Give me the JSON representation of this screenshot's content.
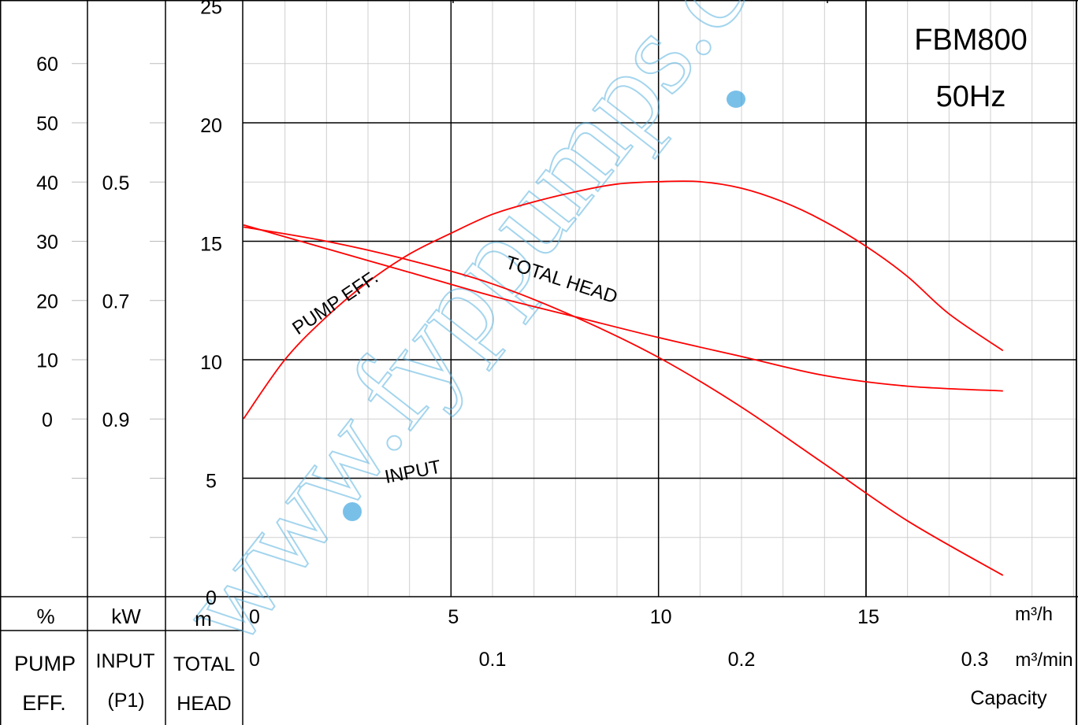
{
  "chart_data": {
    "type": "line",
    "model": "FBM800",
    "frequency": "50Hz",
    "watermark": "www.fyppumps.com",
    "x_axis": {
      "unit_main": "m³/h",
      "unit_alt": "m³/min",
      "caption": "Capacity",
      "range_m3h": [
        0,
        20
      ],
      "ticks_m3h": [
        {
          "value": 0,
          "label": "0"
        },
        {
          "value": 5,
          "label": "5"
        },
        {
          "value": 10,
          "label": "10"
        },
        {
          "value": 15,
          "label": "15"
        }
      ],
      "ticks_m3min": [
        {
          "value": 0,
          "label": "0"
        },
        {
          "value": 0.1,
          "label": "0.1"
        },
        {
          "value": 0.2,
          "label": "0.2"
        },
        {
          "value": 0.3,
          "label": "0.3"
        }
      ]
    },
    "y_axes": {
      "head": {
        "unit": "m",
        "caption": [
          "TOTAL",
          "HEAD"
        ],
        "range": [
          0,
          25
        ],
        "ticks": [
          "0",
          "5",
          "10",
          "15",
          "20",
          "25"
        ]
      },
      "input": {
        "unit": "kW",
        "caption": [
          "INPUT",
          "(P1)"
        ],
        "ticks": [
          {
            "value": 0.9,
            "label": "0.9"
          },
          {
            "value": 0.7,
            "label": "0.7"
          },
          {
            "value": 0.5,
            "label": "0.5"
          }
        ]
      },
      "efficiency": {
        "unit": "%",
        "caption": [
          "PUMP",
          "EFF."
        ],
        "ticks": [
          {
            "value": 0,
            "label": "0"
          },
          {
            "value": 10,
            "label": "10"
          },
          {
            "value": 20,
            "label": "20"
          },
          {
            "value": 30,
            "label": "30"
          },
          {
            "value": 40,
            "label": "40"
          },
          {
            "value": 50,
            "label": "50"
          },
          {
            "value": 60,
            "label": "60"
          }
        ]
      }
    },
    "series": [
      {
        "name": "TOTAL HEAD",
        "axis": "head",
        "color": "#ff0000",
        "points": [
          [
            0,
            15.6
          ],
          [
            2,
            15.0
          ],
          [
            4,
            14.2
          ],
          [
            6,
            13.2
          ],
          [
            8,
            11.8
          ],
          [
            10,
            10.1
          ],
          [
            12,
            8.0
          ],
          [
            14,
            5.6
          ],
          [
            16,
            3.2
          ],
          [
            18.3,
            0.9
          ]
        ]
      },
      {
        "name": "PUMP EFF.",
        "axis": "efficiency",
        "color": "#ff0000",
        "points": [
          [
            0,
            0
          ],
          [
            1,
            10
          ],
          [
            2,
            17.2
          ],
          [
            3,
            23.1
          ],
          [
            4,
            27.8
          ],
          [
            5,
            31.3
          ],
          [
            6,
            34.5
          ],
          [
            7,
            36.6
          ],
          [
            8,
            38.3
          ],
          [
            9,
            39.6
          ],
          [
            10,
            40.0
          ],
          [
            11,
            40.0
          ],
          [
            12,
            38.9
          ],
          [
            13,
            36.6
          ],
          [
            14,
            33.3
          ],
          [
            15,
            29.1
          ],
          [
            16,
            24.0
          ],
          [
            17,
            17.7
          ],
          [
            18.3,
            11.5
          ]
        ]
      },
      {
        "name": "INPUT",
        "axis": "input",
        "color": "#ff0000",
        "points": [
          [
            0,
            0.573
          ],
          [
            2,
            0.613
          ],
          [
            4,
            0.653
          ],
          [
            6,
            0.693
          ],
          [
            8,
            0.728
          ],
          [
            10,
            0.763
          ],
          [
            12,
            0.795
          ],
          [
            14,
            0.827
          ],
          [
            16,
            0.845
          ],
          [
            18.3,
            0.853
          ]
        ]
      }
    ]
  }
}
